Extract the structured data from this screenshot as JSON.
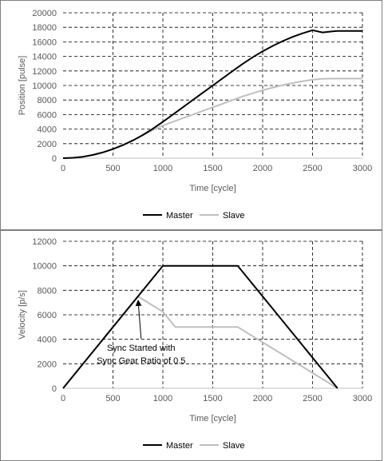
{
  "colors": {
    "master": "#000000",
    "slave": "#bfbfbf",
    "grid": "#000000",
    "axis": "#bfbfbf",
    "text": "#595959"
  },
  "chart_data": [
    {
      "type": "line",
      "title": "",
      "xlabel": "Time [cycle]",
      "ylabel": "Position [pulse]",
      "xlim": [
        0,
        3000
      ],
      "ylim": [
        0,
        20000
      ],
      "xticks": [
        0,
        500,
        1000,
        1500,
        2000,
        2500,
        3000
      ],
      "yticks": [
        0,
        2000,
        4000,
        6000,
        8000,
        10000,
        12000,
        14000,
        16000,
        18000,
        20000
      ],
      "grid": "dashed",
      "legend": "bottom",
      "series": [
        {
          "name": "Master",
          "x": [
            0,
            100,
            200,
            300,
            400,
            500,
            600,
            700,
            750,
            800,
            900,
            1000,
            1100,
            1200,
            1300,
            1400,
            1500,
            1600,
            1700,
            1750,
            1800,
            1900,
            2000,
            2100,
            2200,
            2300,
            2400,
            2500,
            2600,
            2700,
            2750,
            2800,
            2900,
            3000
          ],
          "y": [
            0,
            50,
            200,
            450,
            800,
            1250,
            1800,
            2450,
            2810,
            3200,
            4050,
            5000,
            6000,
            7000,
            8000,
            9000,
            10000,
            11000,
            12000,
            12500,
            12980,
            13880,
            14700,
            15440,
            16100,
            16680,
            17180,
            17600,
            17300,
            17450,
            17500,
            17500,
            17500,
            17500
          ]
        },
        {
          "name": "Slave",
          "x": [
            0,
            100,
            200,
            300,
            400,
            500,
            600,
            700,
            750,
            800,
            900,
            1000,
            1100,
            1200,
            1300,
            1400,
            1500,
            1600,
            1700,
            1750,
            1800,
            1900,
            2000,
            2100,
            2200,
            2300,
            2400,
            2500,
            2600,
            2700,
            2750,
            2800,
            2900,
            3000
          ],
          "y": [
            0,
            50,
            200,
            450,
            800,
            1250,
            1800,
            2450,
            2810,
            3170,
            3860,
            4480,
            5000,
            5500,
            6000,
            6500,
            7000,
            7500,
            8000,
            8250,
            8490,
            8930,
            9340,
            9710,
            10040,
            10330,
            10580,
            10790,
            10920,
            10950,
            10950,
            10950,
            10950,
            10950
          ]
        }
      ]
    },
    {
      "type": "line",
      "title": "",
      "xlabel": "Time [cycle]",
      "ylabel": "Velocity [p/s]",
      "xlim": [
        0,
        3000
      ],
      "ylim": [
        0,
        12000
      ],
      "xticks": [
        0,
        500,
        1000,
        1500,
        2000,
        2500,
        3000
      ],
      "yticks": [
        0,
        2000,
        4000,
        6000,
        8000,
        10000,
        12000
      ],
      "grid": "dashed",
      "legend": "bottom",
      "annotation": {
        "lines": [
          "Sync Started with",
          "Sync Gear Ratio of 0.5"
        ],
        "x": 750,
        "y": 7500
      },
      "series": [
        {
          "name": "Master",
          "x": [
            0,
            1000,
            1750,
            2750
          ],
          "y": [
            0,
            10000,
            10000,
            0
          ]
        },
        {
          "name": "Slave",
          "x": [
            0,
            750,
            1000,
            1125,
            1750,
            2750
          ],
          "y": [
            0,
            7500,
            6250,
            5000,
            5000,
            0
          ]
        }
      ]
    }
  ]
}
